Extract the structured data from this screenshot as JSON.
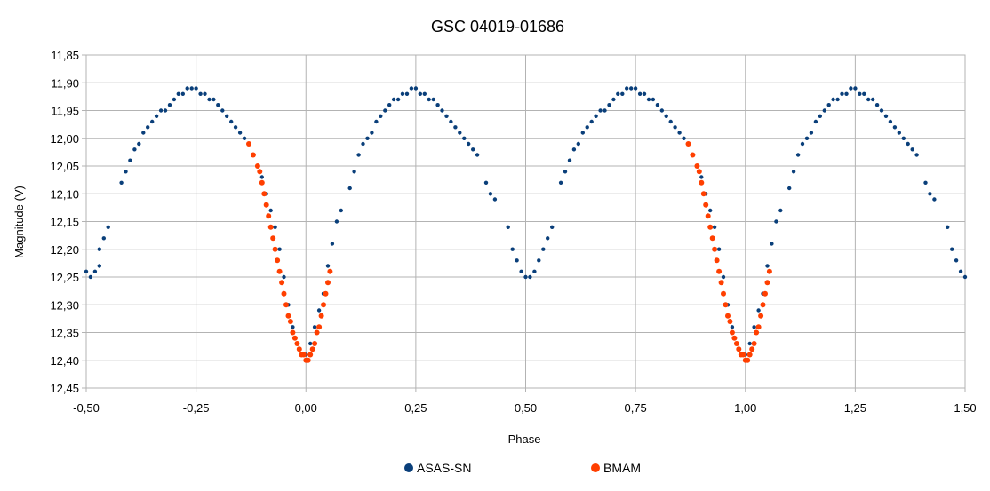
{
  "chart_data": {
    "type": "scatter",
    "title": "GSC 04019-01686",
    "xlabel": "Phase",
    "ylabel": "Magnitude (V)",
    "xlim": [
      -0.5,
      1.5
    ],
    "ylim": [
      11.85,
      12.45
    ],
    "y_inverted": true,
    "grid": true,
    "legend_position": "bottom",
    "x_ticks": [
      "-0,50",
      "-0,25",
      "0,00",
      "0,25",
      "0,50",
      "0,75",
      "1,00",
      "1,25",
      "1,50"
    ],
    "y_ticks": [
      "11,85",
      "11,90",
      "11,95",
      "12,00",
      "12,05",
      "12,10",
      "12,15",
      "12,20",
      "12,25",
      "12,30",
      "12,35",
      "12,40",
      "12,45"
    ],
    "series": [
      {
        "name": "ASAS-SN",
        "color": "#0a3f7a",
        "points": [
          [
            -0.5,
            12.24
          ],
          [
            -0.49,
            12.25
          ],
          [
            -0.48,
            12.24
          ],
          [
            -0.47,
            12.23
          ],
          [
            -0.47,
            12.2
          ],
          [
            -0.46,
            12.18
          ],
          [
            -0.45,
            12.16
          ],
          [
            -0.42,
            12.08
          ],
          [
            -0.41,
            12.06
          ],
          [
            -0.4,
            12.04
          ],
          [
            -0.39,
            12.02
          ],
          [
            -0.38,
            12.01
          ],
          [
            -0.37,
            11.99
          ],
          [
            -0.36,
            11.98
          ],
          [
            -0.35,
            11.97
          ],
          [
            -0.34,
            11.96
          ],
          [
            -0.33,
            11.95
          ],
          [
            -0.32,
            11.95
          ],
          [
            -0.31,
            11.94
          ],
          [
            -0.3,
            11.93
          ],
          [
            -0.29,
            11.92
          ],
          [
            -0.28,
            11.92
          ],
          [
            -0.27,
            11.91
          ],
          [
            -0.26,
            11.91
          ],
          [
            -0.25,
            11.91
          ],
          [
            -0.24,
            11.92
          ],
          [
            -0.23,
            11.92
          ],
          [
            -0.22,
            11.93
          ],
          [
            -0.21,
            11.93
          ],
          [
            -0.2,
            11.94
          ],
          [
            -0.19,
            11.95
          ],
          [
            -0.18,
            11.96
          ],
          [
            -0.17,
            11.97
          ],
          [
            -0.16,
            11.98
          ],
          [
            -0.15,
            11.99
          ],
          [
            -0.14,
            12.0
          ],
          [
            -0.13,
            12.01
          ],
          [
            -0.12,
            12.03
          ],
          [
            -0.11,
            12.05
          ],
          [
            -0.1,
            12.07
          ],
          [
            -0.09,
            12.1
          ],
          [
            -0.08,
            12.13
          ],
          [
            -0.07,
            12.16
          ],
          [
            -0.06,
            12.2
          ],
          [
            -0.05,
            12.25
          ],
          [
            -0.04,
            12.3
          ],
          [
            -0.03,
            12.34
          ],
          [
            -0.02,
            12.37
          ],
          [
            -0.01,
            12.39
          ],
          [
            0.0,
            12.39
          ],
          [
            0.01,
            12.37
          ],
          [
            0.02,
            12.34
          ],
          [
            0.03,
            12.31
          ],
          [
            0.04,
            12.28
          ],
          [
            0.05,
            12.23
          ],
          [
            0.06,
            12.19
          ],
          [
            0.07,
            12.15
          ],
          [
            0.08,
            12.13
          ],
          [
            0.1,
            12.09
          ],
          [
            0.11,
            12.06
          ],
          [
            0.12,
            12.03
          ],
          [
            0.13,
            12.01
          ],
          [
            0.14,
            12.0
          ],
          [
            0.15,
            11.99
          ],
          [
            0.16,
            11.97
          ],
          [
            0.17,
            11.96
          ],
          [
            0.18,
            11.95
          ],
          [
            0.19,
            11.94
          ],
          [
            0.2,
            11.93
          ],
          [
            0.21,
            11.93
          ],
          [
            0.22,
            11.92
          ],
          [
            0.23,
            11.92
          ],
          [
            0.24,
            11.91
          ],
          [
            0.25,
            11.91
          ],
          [
            0.26,
            11.92
          ],
          [
            0.27,
            11.92
          ],
          [
            0.28,
            11.93
          ],
          [
            0.29,
            11.93
          ],
          [
            0.3,
            11.94
          ],
          [
            0.31,
            11.95
          ],
          [
            0.32,
            11.96
          ],
          [
            0.33,
            11.97
          ],
          [
            0.34,
            11.98
          ],
          [
            0.35,
            11.99
          ],
          [
            0.36,
            12.0
          ],
          [
            0.37,
            12.01
          ],
          [
            0.38,
            12.02
          ],
          [
            0.39,
            12.03
          ],
          [
            0.41,
            12.08
          ],
          [
            0.42,
            12.1
          ],
          [
            0.43,
            12.11
          ],
          [
            0.46,
            12.16
          ],
          [
            0.47,
            12.2
          ],
          [
            0.48,
            12.22
          ],
          [
            0.49,
            12.24
          ],
          [
            0.5,
            12.25
          ],
          [
            0.51,
            12.25
          ],
          [
            0.52,
            12.24
          ],
          [
            0.53,
            12.22
          ],
          [
            0.54,
            12.2
          ],
          [
            0.55,
            12.18
          ],
          [
            0.56,
            12.16
          ],
          [
            0.58,
            12.08
          ],
          [
            0.59,
            12.06
          ],
          [
            0.6,
            12.04
          ],
          [
            0.61,
            12.02
          ],
          [
            0.62,
            12.01
          ],
          [
            0.63,
            11.99
          ],
          [
            0.64,
            11.98
          ],
          [
            0.65,
            11.97
          ],
          [
            0.66,
            11.96
          ],
          [
            0.67,
            11.95
          ],
          [
            0.68,
            11.95
          ],
          [
            0.69,
            11.94
          ],
          [
            0.7,
            11.93
          ],
          [
            0.71,
            11.92
          ],
          [
            0.72,
            11.92
          ],
          [
            0.73,
            11.91
          ],
          [
            0.74,
            11.91
          ],
          [
            0.75,
            11.91
          ],
          [
            0.76,
            11.92
          ],
          [
            0.77,
            11.92
          ],
          [
            0.78,
            11.93
          ],
          [
            0.79,
            11.93
          ],
          [
            0.8,
            11.94
          ],
          [
            0.81,
            11.95
          ],
          [
            0.82,
            11.96
          ],
          [
            0.83,
            11.97
          ],
          [
            0.84,
            11.98
          ],
          [
            0.85,
            11.99
          ],
          [
            0.86,
            12.0
          ],
          [
            0.87,
            12.01
          ],
          [
            0.88,
            12.03
          ],
          [
            0.89,
            12.05
          ],
          [
            0.9,
            12.07
          ],
          [
            0.91,
            12.1
          ],
          [
            0.92,
            12.13
          ],
          [
            0.93,
            12.16
          ],
          [
            0.94,
            12.2
          ],
          [
            0.95,
            12.25
          ],
          [
            0.96,
            12.3
          ],
          [
            0.97,
            12.34
          ],
          [
            0.98,
            12.37
          ],
          [
            0.99,
            12.39
          ],
          [
            1.0,
            12.39
          ],
          [
            1.01,
            12.37
          ],
          [
            1.02,
            12.34
          ],
          [
            1.03,
            12.31
          ],
          [
            1.04,
            12.28
          ],
          [
            1.05,
            12.23
          ],
          [
            1.06,
            12.19
          ],
          [
            1.07,
            12.15
          ],
          [
            1.08,
            12.13
          ],
          [
            1.1,
            12.09
          ],
          [
            1.11,
            12.06
          ],
          [
            1.12,
            12.03
          ],
          [
            1.13,
            12.01
          ],
          [
            1.14,
            12.0
          ],
          [
            1.15,
            11.99
          ],
          [
            1.16,
            11.97
          ],
          [
            1.17,
            11.96
          ],
          [
            1.18,
            11.95
          ],
          [
            1.19,
            11.94
          ],
          [
            1.2,
            11.93
          ],
          [
            1.21,
            11.93
          ],
          [
            1.22,
            11.92
          ],
          [
            1.23,
            11.92
          ],
          [
            1.24,
            11.91
          ],
          [
            1.25,
            11.91
          ],
          [
            1.26,
            11.92
          ],
          [
            1.27,
            11.92
          ],
          [
            1.28,
            11.93
          ],
          [
            1.29,
            11.93
          ],
          [
            1.3,
            11.94
          ],
          [
            1.31,
            11.95
          ],
          [
            1.32,
            11.96
          ],
          [
            1.33,
            11.97
          ],
          [
            1.34,
            11.98
          ],
          [
            1.35,
            11.99
          ],
          [
            1.36,
            12.0
          ],
          [
            1.37,
            12.01
          ],
          [
            1.38,
            12.02
          ],
          [
            1.39,
            12.03
          ],
          [
            1.41,
            12.08
          ],
          [
            1.42,
            12.1
          ],
          [
            1.43,
            12.11
          ],
          [
            1.46,
            12.16
          ],
          [
            1.47,
            12.2
          ],
          [
            1.48,
            12.22
          ],
          [
            1.49,
            12.24
          ],
          [
            1.5,
            12.25
          ]
        ]
      },
      {
        "name": "BMAM",
        "color": "#ff3f00",
        "points": [
          [
            -0.13,
            12.01
          ],
          [
            -0.12,
            12.03
          ],
          [
            -0.11,
            12.05
          ],
          [
            -0.105,
            12.06
          ],
          [
            -0.1,
            12.08
          ],
          [
            -0.095,
            12.1
          ],
          [
            -0.09,
            12.12
          ],
          [
            -0.085,
            12.14
          ],
          [
            -0.08,
            12.16
          ],
          [
            -0.075,
            12.18
          ],
          [
            -0.07,
            12.2
          ],
          [
            -0.065,
            12.22
          ],
          [
            -0.06,
            12.24
          ],
          [
            -0.055,
            12.26
          ],
          [
            -0.05,
            12.28
          ],
          [
            -0.045,
            12.3
          ],
          [
            -0.04,
            12.32
          ],
          [
            -0.035,
            12.33
          ],
          [
            -0.03,
            12.35
          ],
          [
            -0.025,
            12.36
          ],
          [
            -0.02,
            12.37
          ],
          [
            -0.015,
            12.38
          ],
          [
            -0.01,
            12.39
          ],
          [
            -0.005,
            12.39
          ],
          [
            0.0,
            12.4
          ],
          [
            0.005,
            12.4
          ],
          [
            0.01,
            12.39
          ],
          [
            0.015,
            12.38
          ],
          [
            0.02,
            12.37
          ],
          [
            0.025,
            12.35
          ],
          [
            0.03,
            12.34
          ],
          [
            0.035,
            12.32
          ],
          [
            0.04,
            12.3
          ],
          [
            0.045,
            12.28
          ],
          [
            0.05,
            12.26
          ],
          [
            0.055,
            12.24
          ],
          [
            0.87,
            12.01
          ],
          [
            0.88,
            12.03
          ],
          [
            0.89,
            12.05
          ],
          [
            0.895,
            12.06
          ],
          [
            0.9,
            12.08
          ],
          [
            0.905,
            12.1
          ],
          [
            0.91,
            12.12
          ],
          [
            0.915,
            12.14
          ],
          [
            0.92,
            12.16
          ],
          [
            0.925,
            12.18
          ],
          [
            0.93,
            12.2
          ],
          [
            0.935,
            12.22
          ],
          [
            0.94,
            12.24
          ],
          [
            0.945,
            12.26
          ],
          [
            0.95,
            12.28
          ],
          [
            0.955,
            12.3
          ],
          [
            0.96,
            12.32
          ],
          [
            0.965,
            12.33
          ],
          [
            0.97,
            12.35
          ],
          [
            0.975,
            12.36
          ],
          [
            0.98,
            12.37
          ],
          [
            0.985,
            12.38
          ],
          [
            0.99,
            12.39
          ],
          [
            0.995,
            12.39
          ],
          [
            1.0,
            12.4
          ],
          [
            1.005,
            12.4
          ],
          [
            1.01,
            12.39
          ],
          [
            1.015,
            12.38
          ],
          [
            1.02,
            12.37
          ],
          [
            1.025,
            12.35
          ],
          [
            1.03,
            12.34
          ],
          [
            1.035,
            12.32
          ],
          [
            1.04,
            12.3
          ],
          [
            1.045,
            12.28
          ],
          [
            1.05,
            12.26
          ],
          [
            1.055,
            12.24
          ]
        ]
      }
    ]
  }
}
